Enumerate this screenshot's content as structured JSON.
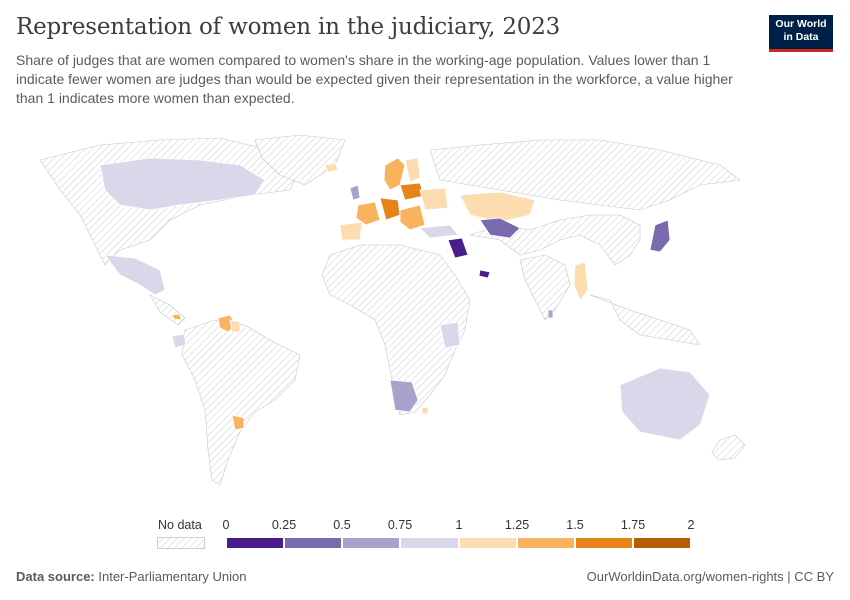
{
  "title": "Representation of women in the judiciary, 2023",
  "subtitle": "Share of judges that are women compared to women's share in the working-age population. Values lower than 1 indicate fewer women are judges than would be expected given their representation in the workforce, a value higher than 1 indicates more women than expected.",
  "logo": {
    "line1": "Our World",
    "line2": "in Data"
  },
  "legend": {
    "no_data_label": "No data",
    "ticks": [
      "0",
      "0.25",
      "0.5",
      "0.75",
      "1",
      "1.25",
      "1.5",
      "1.75",
      "2"
    ],
    "bins": [
      {
        "from": 0,
        "to": 0.25,
        "color": "#4a1e8a"
      },
      {
        "from": 0.25,
        "to": 0.5,
        "color": "#7a6aae"
      },
      {
        "from": 0.5,
        "to": 0.75,
        "color": "#a9a2cd"
      },
      {
        "from": 0.75,
        "to": 1,
        "color": "#d8d8ea"
      },
      {
        "from": 1,
        "to": 1.25,
        "color": "#fddcb0"
      },
      {
        "from": 1.25,
        "to": 1.5,
        "color": "#f9b35e"
      },
      {
        "from": 1.5,
        "to": 1.75,
        "color": "#e58419"
      },
      {
        "from": 1.75,
        "to": 2,
        "color": "#b45f06"
      }
    ]
  },
  "colors": {
    "no_data_hatch": "#cccccc",
    "country_border": "#ffffff",
    "land_outline": "#bdbdbd"
  },
  "footer": {
    "source_label": "Data source:",
    "source_value": "Inter-Parliamentary Union",
    "url": "OurWorldinData.org/women-rights",
    "license": "CC BY"
  }
}
